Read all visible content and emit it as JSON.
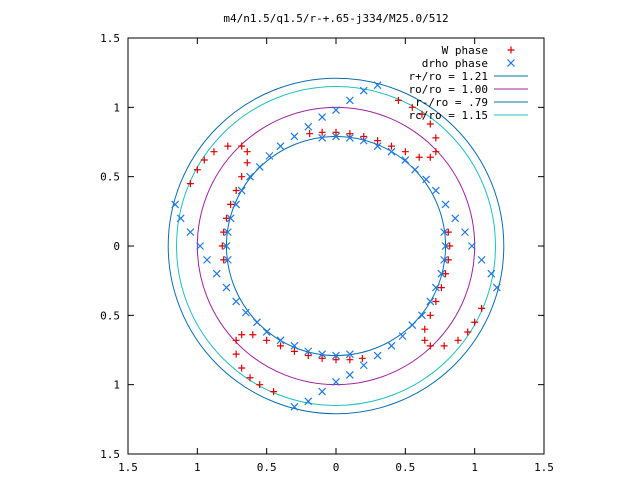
{
  "chart_data": {
    "type": "scatter",
    "title": "m4/n1.5/q1.5/r-+.65-j334/M25.0/512",
    "xlim": [
      -1.5,
      1.5
    ],
    "ylim": [
      -1.5,
      1.5
    ],
    "x_ticks": [
      -1.5,
      -1,
      -0.5,
      0,
      0.5,
      1,
      1.5
    ],
    "y_ticks": [
      -1.5,
      -1,
      -0.5,
      0,
      0.5,
      1,
      1.5
    ],
    "x_tick_labels": [
      "1.5",
      "1",
      "0.5",
      "0",
      "0.5",
      "1",
      "1.5"
    ],
    "y_tick_labels": [
      "1.5",
      "1",
      "0.5",
      "0",
      "0.5",
      "1",
      "1.5"
    ],
    "grid": false,
    "legend_position": "top-right",
    "circles": [
      {
        "name": "r+/ro = 1.21",
        "r": 1.21,
        "color": "#0a6fb0"
      },
      {
        "name": "ro/ro = 1.00",
        "r": 1.0,
        "color": "#a020a0"
      },
      {
        "name": "r-/ro = .79",
        "r": 0.79,
        "color": "#0a6fb0"
      },
      {
        "name": "rc/ro = 1.15",
        "r": 1.15,
        "color": "#20c0c0"
      }
    ],
    "series": [
      {
        "name": "W phase",
        "marker": "+",
        "color": "#e00000",
        "points": [
          [
            -0.19,
            0.81
          ],
          [
            -0.1,
            0.82
          ],
          [
            0.0,
            0.82
          ],
          [
            0.1,
            0.81
          ],
          [
            0.2,
            0.79
          ],
          [
            0.3,
            0.76
          ],
          [
            0.4,
            0.72
          ],
          [
            0.5,
            0.68
          ],
          [
            0.6,
            0.64
          ],
          [
            0.68,
            0.64
          ],
          [
            0.72,
            0.68
          ],
          [
            0.72,
            0.78
          ],
          [
            0.68,
            0.88
          ],
          [
            0.62,
            0.95
          ],
          [
            0.55,
            1.0
          ],
          [
            0.45,
            1.05
          ],
          [
            0.81,
            0.1
          ],
          [
            0.82,
            0.0
          ],
          [
            0.81,
            -0.1
          ],
          [
            0.79,
            -0.2
          ],
          [
            0.76,
            -0.3
          ],
          [
            0.72,
            -0.4
          ],
          [
            0.68,
            -0.5
          ],
          [
            0.64,
            -0.6
          ],
          [
            0.64,
            -0.68
          ],
          [
            0.68,
            -0.72
          ],
          [
            0.78,
            -0.72
          ],
          [
            0.88,
            -0.68
          ],
          [
            0.95,
            -0.62
          ],
          [
            1.0,
            -0.55
          ],
          [
            1.05,
            -0.45
          ],
          [
            0.19,
            -0.81
          ],
          [
            0.1,
            -0.82
          ],
          [
            0.0,
            -0.82
          ],
          [
            -0.1,
            -0.81
          ],
          [
            -0.2,
            -0.79
          ],
          [
            -0.3,
            -0.76
          ],
          [
            -0.4,
            -0.72
          ],
          [
            -0.5,
            -0.68
          ],
          [
            -0.6,
            -0.64
          ],
          [
            -0.68,
            -0.64
          ],
          [
            -0.72,
            -0.68
          ],
          [
            -0.72,
            -0.78
          ],
          [
            -0.68,
            -0.88
          ],
          [
            -0.62,
            -0.95
          ],
          [
            -0.55,
            -1.0
          ],
          [
            -0.45,
            -1.05
          ],
          [
            -0.81,
            -0.1
          ],
          [
            -0.82,
            0.0
          ],
          [
            -0.81,
            0.1
          ],
          [
            -0.79,
            0.2
          ],
          [
            -0.76,
            0.3
          ],
          [
            -0.72,
            0.4
          ],
          [
            -0.68,
            0.5
          ],
          [
            -0.64,
            0.6
          ],
          [
            -0.64,
            0.68
          ],
          [
            -0.68,
            0.72
          ],
          [
            -0.78,
            0.72
          ],
          [
            -0.88,
            0.68
          ],
          [
            -0.95,
            0.62
          ],
          [
            -1.0,
            0.55
          ],
          [
            -1.05,
            0.45
          ]
        ]
      },
      {
        "name": "drho phase",
        "marker": "x",
        "color": "#1e78e6",
        "points": [
          [
            0.78,
            0.1
          ],
          [
            0.79,
            0.0
          ],
          [
            0.78,
            -0.1
          ],
          [
            0.76,
            -0.2
          ],
          [
            0.72,
            -0.3
          ],
          [
            0.68,
            -0.4
          ],
          [
            0.62,
            -0.5
          ],
          [
            0.55,
            -0.57
          ],
          [
            0.48,
            -0.65
          ],
          [
            0.4,
            -0.72
          ],
          [
            0.3,
            -0.79
          ],
          [
            0.2,
            -0.86
          ],
          [
            0.1,
            -0.93
          ],
          [
            0.0,
            -0.98
          ],
          [
            -0.1,
            -1.05
          ],
          [
            -0.2,
            -1.12
          ],
          [
            -0.3,
            -1.16
          ],
          [
            -0.1,
            0.78
          ],
          [
            0.0,
            0.79
          ],
          [
            0.1,
            0.78
          ],
          [
            0.2,
            0.76
          ],
          [
            0.3,
            0.72
          ],
          [
            0.4,
            0.68
          ],
          [
            0.5,
            0.62
          ],
          [
            0.57,
            0.55
          ],
          [
            0.65,
            0.48
          ],
          [
            0.72,
            0.4
          ],
          [
            0.79,
            0.3
          ],
          [
            0.86,
            0.2
          ],
          [
            0.93,
            0.1
          ],
          [
            0.98,
            0.0
          ],
          [
            1.05,
            -0.1
          ],
          [
            1.12,
            -0.2
          ],
          [
            1.16,
            -0.3
          ],
          [
            -0.78,
            -0.1
          ],
          [
            -0.79,
            0.0
          ],
          [
            -0.78,
            0.1
          ],
          [
            -0.76,
            0.2
          ],
          [
            -0.72,
            0.3
          ],
          [
            -0.68,
            0.4
          ],
          [
            -0.62,
            0.5
          ],
          [
            -0.55,
            0.57
          ],
          [
            -0.48,
            0.65
          ],
          [
            -0.4,
            0.72
          ],
          [
            -0.3,
            0.79
          ],
          [
            -0.2,
            0.86
          ],
          [
            -0.1,
            0.93
          ],
          [
            0.0,
            0.98
          ],
          [
            0.1,
            1.05
          ],
          [
            0.2,
            1.12
          ],
          [
            0.3,
            1.16
          ],
          [
            0.1,
            -0.78
          ],
          [
            0.0,
            -0.79
          ],
          [
            -0.1,
            -0.78
          ],
          [
            -0.2,
            -0.76
          ],
          [
            -0.3,
            -0.72
          ],
          [
            -0.4,
            -0.68
          ],
          [
            -0.5,
            -0.62
          ],
          [
            -0.57,
            -0.55
          ],
          [
            -0.65,
            -0.48
          ],
          [
            -0.72,
            -0.4
          ],
          [
            -0.79,
            -0.3
          ],
          [
            -0.86,
            -0.2
          ],
          [
            -0.93,
            -0.1
          ],
          [
            -0.98,
            0.0
          ],
          [
            -1.05,
            0.1
          ],
          [
            -1.12,
            0.2
          ],
          [
            -1.16,
            0.3
          ]
        ]
      }
    ]
  }
}
